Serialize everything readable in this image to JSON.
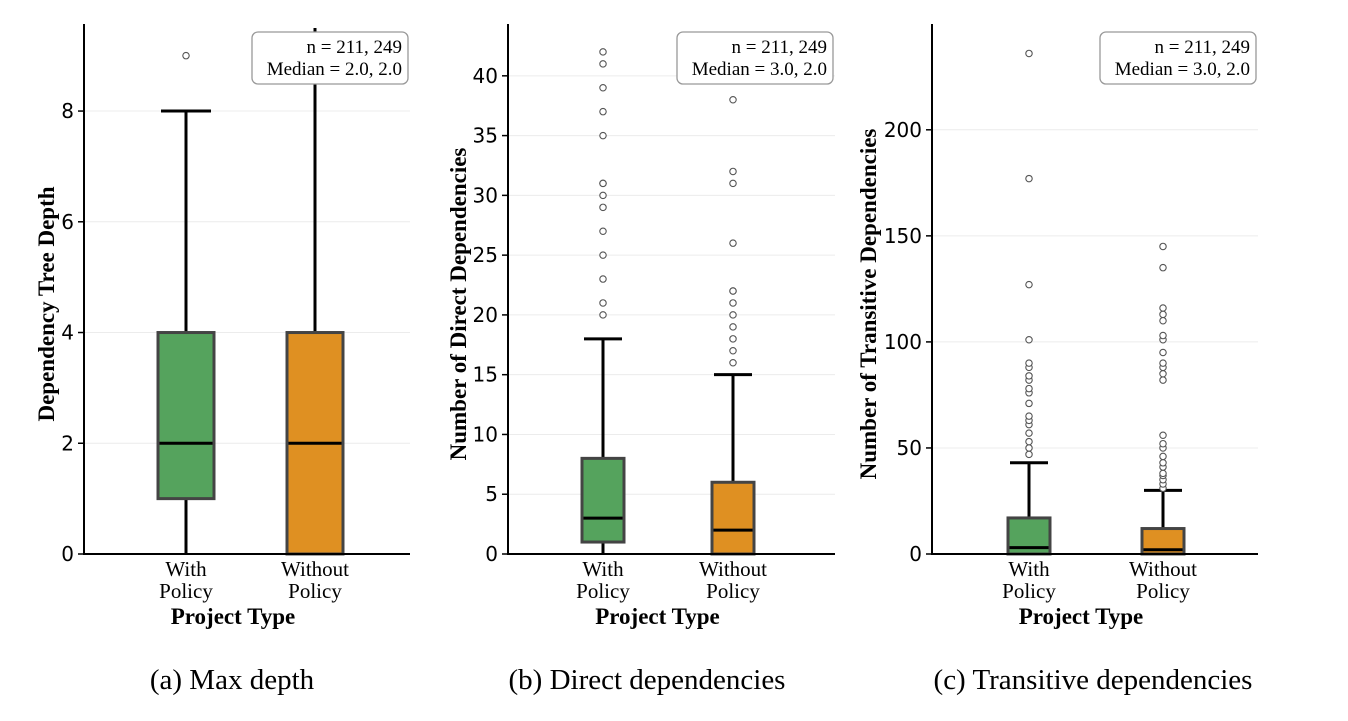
{
  "chart_data": [
    {
      "type": "box",
      "caption": "(a) Max depth",
      "xlabel": "Project Type",
      "ylabel": "Dependency Tree Depth",
      "ylim": [
        0,
        9.5
      ],
      "yticks": [
        0,
        2,
        4,
        6,
        8
      ],
      "grid": true,
      "legend_position": "top-right",
      "annotation": [
        "n = 211, 249",
        "Median = 2.0, 2.0"
      ],
      "categories": [
        [
          "With",
          "Policy"
        ],
        [
          "Without",
          "Policy"
        ]
      ],
      "boxes": [
        {
          "name": "With Policy",
          "color": "#55a35d",
          "whisker_low": 0,
          "q1": 1,
          "median": 2,
          "q3": 4,
          "whisker_high": 8,
          "outliers": [
            9
          ]
        },
        {
          "name": "Without Policy",
          "color": "#df9022",
          "whisker_low": 0,
          "q1": 0,
          "median": 2,
          "q3": 4,
          "whisker_high": 9.5,
          "outliers": []
        }
      ]
    },
    {
      "type": "box",
      "caption": "(b) Direct dependencies",
      "xlabel": "Project Type",
      "ylabel": "Number of Direct Dependencies",
      "ylim": [
        0,
        44
      ],
      "yticks": [
        0,
        5,
        10,
        15,
        20,
        25,
        30,
        35,
        40
      ],
      "grid": true,
      "legend_position": "top-right",
      "annotation": [
        "n = 211, 249",
        "Median = 3.0, 2.0"
      ],
      "categories": [
        [
          "With",
          "Policy"
        ],
        [
          "Without",
          "Policy"
        ]
      ],
      "boxes": [
        {
          "name": "With Policy",
          "color": "#55a35d",
          "whisker_low": 0,
          "q1": 1,
          "median": 3,
          "q3": 8,
          "whisker_high": 18,
          "outliers": [
            20,
            21,
            23,
            25,
            27,
            29,
            30,
            31,
            31,
            35,
            37,
            39,
            41,
            42
          ]
        },
        {
          "name": "Without Policy",
          "color": "#df9022",
          "whisker_low": 0,
          "q1": 0,
          "median": 2,
          "q3": 6,
          "whisker_high": 15,
          "outliers": [
            16,
            17,
            18,
            19,
            20,
            21,
            22,
            22,
            26,
            31,
            32,
            38
          ]
        }
      ]
    },
    {
      "type": "box",
      "caption": "(c) Transitive dependencies",
      "xlabel": "Project Type",
      "ylabel": "Number of Transitive Dependencies",
      "ylim": [
        0,
        248
      ],
      "yticks": [
        0,
        50,
        100,
        150,
        200
      ],
      "grid": true,
      "legend_position": "top-right",
      "annotation": [
        "n = 211, 249",
        "Median = 3.0, 2.0"
      ],
      "categories": [
        [
          "With",
          "Policy"
        ],
        [
          "Without",
          "Policy"
        ]
      ],
      "boxes": [
        {
          "name": "With Policy",
          "color": "#55a35d",
          "whisker_low": 0,
          "q1": 0,
          "median": 3,
          "q3": 17,
          "whisker_high": 43,
          "outliers": [
            47,
            50,
            53,
            57,
            61,
            63,
            65,
            71,
            76,
            78,
            82,
            84,
            88,
            90,
            101,
            127,
            177,
            236
          ]
        },
        {
          "name": "Without Policy",
          "color": "#df9022",
          "whisker_low": 0,
          "q1": 0,
          "median": 2,
          "q3": 12,
          "whisker_high": 30,
          "outliers": [
            31,
            33,
            35,
            37,
            38,
            41,
            43,
            46,
            50,
            52,
            56,
            82,
            85,
            88,
            90,
            95,
            101,
            103,
            110,
            113,
            116,
            135,
            145
          ]
        }
      ]
    }
  ]
}
